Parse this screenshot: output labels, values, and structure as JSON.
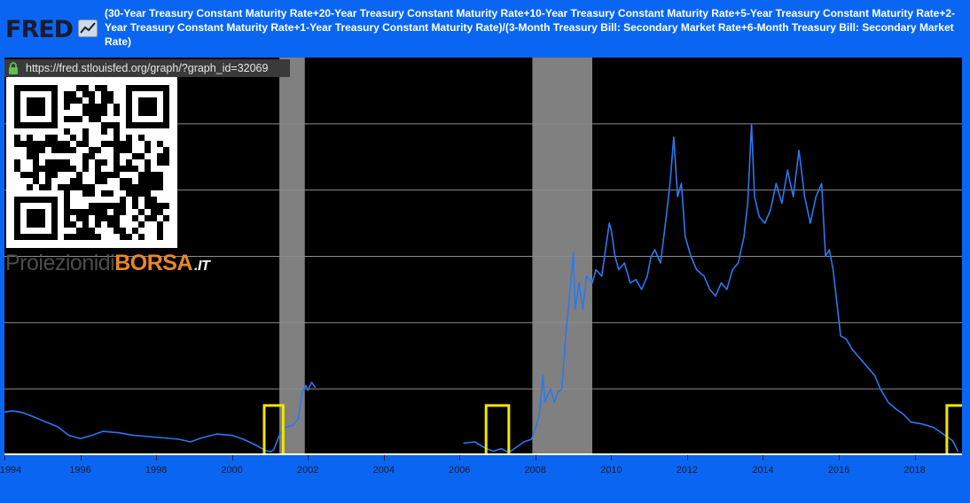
{
  "header": {
    "logo_text": "FRED",
    "logo_icon": "chart-line-icon",
    "title": "(30-Year Treasury Constant Maturity Rate+20-Year Treasury Constant Maturity Rate+10-Year Treasury Constant Maturity Rate+5-Year Treasury Constant Maturity Rate+2-Year Treasury Constant Maturity Rate+1-Year Treasury Constant Maturity Rate)/(3-Month Treasury Bill: Secondary Market Rate+6-Month Treasury Bill: Secondary Market Rate)"
  },
  "overlay": {
    "url": "https://fred.stlouisfed.org/graph/?graph_id=32069",
    "lock_icon": "lock-icon",
    "qr_icon": "qr-code-icon",
    "watermark_part1": "Proiezionidi",
    "watermark_part2": "BORSA",
    "watermark_part3": ".IT"
  },
  "colors": {
    "background": "#0a66f2",
    "plot_background": "#000000",
    "line": "#2a78f0",
    "recession": "#808080",
    "gridline": "#8c8c8c",
    "highlight_box": "#f2e600"
  },
  "chart_data": {
    "type": "line",
    "xlim": [
      1994.0,
      2019.25
    ],
    "ylim": [
      0,
      6
    ],
    "grid": true,
    "x_ticks": [
      "1994",
      "1996",
      "1998",
      "2000",
      "2002",
      "2004",
      "2006",
      "2008",
      "2010",
      "2012",
      "2014",
      "2016",
      "2018"
    ],
    "recessions": [
      [
        2001.25,
        2001.92
      ],
      [
        2007.92,
        2009.5
      ]
    ],
    "highlight_boxes": [
      [
        2000.85,
        2001.35
      ],
      [
        2006.7,
        2007.3
      ],
      [
        2018.85,
        2019.4
      ]
    ],
    "series": [
      {
        "segments": [
          [
            [
              1994.0,
              0.65
            ],
            [
              1994.2,
              0.67
            ],
            [
              1994.5,
              0.64
            ],
            [
              1994.8,
              0.57
            ],
            [
              1995.1,
              0.5
            ],
            [
              1995.4,
              0.43
            ],
            [
              1995.7,
              0.3
            ],
            [
              1996.0,
              0.25
            ],
            [
              1996.3,
              0.3
            ],
            [
              1996.6,
              0.36
            ],
            [
              1997.0,
              0.34
            ],
            [
              1997.4,
              0.3
            ],
            [
              1997.8,
              0.28
            ],
            [
              1998.2,
              0.26
            ],
            [
              1998.6,
              0.24
            ],
            [
              1998.9,
              0.2
            ],
            [
              1999.2,
              0.26
            ],
            [
              1999.6,
              0.32
            ],
            [
              2000.0,
              0.3
            ],
            [
              2000.3,
              0.24
            ],
            [
              2000.6,
              0.16
            ],
            [
              2000.85,
              0.08
            ],
            [
              2001.0,
              0.05
            ],
            [
              2001.1,
              0.08
            ],
            [
              2001.25,
              0.3
            ],
            [
              2001.4,
              0.42
            ],
            [
              2001.6,
              0.45
            ],
            [
              2001.75,
              0.55
            ],
            [
              2001.85,
              0.95
            ],
            [
              2001.95,
              1.05
            ],
            [
              2002.0,
              0.98
            ],
            [
              2002.1,
              1.1
            ],
            [
              2002.2,
              1.02
            ]
          ],
          [
            [
              2006.1,
              0.18
            ],
            [
              2006.4,
              0.2
            ],
            [
              2006.7,
              0.1
            ],
            [
              2006.9,
              0.06
            ],
            [
              2007.1,
              0.1
            ],
            [
              2007.3,
              0.04
            ],
            [
              2007.5,
              0.12
            ],
            [
              2007.7,
              0.2
            ],
            [
              2007.9,
              0.24
            ],
            [
              2008.0,
              0.4
            ],
            [
              2008.1,
              0.6
            ],
            [
              2008.2,
              1.2
            ],
            [
              2008.25,
              0.8
            ],
            [
              2008.4,
              1.0
            ],
            [
              2008.5,
              0.8
            ],
            [
              2008.6,
              0.95
            ],
            [
              2008.7,
              1.0
            ],
            [
              2008.8,
              1.8
            ],
            [
              2008.9,
              2.4
            ],
            [
              2009.0,
              3.05
            ],
            [
              2009.05,
              2.2
            ],
            [
              2009.15,
              2.6
            ],
            [
              2009.25,
              2.2
            ],
            [
              2009.35,
              2.7
            ],
            [
              2009.5,
              2.6
            ],
            [
              2009.6,
              2.8
            ],
            [
              2009.75,
              2.7
            ],
            [
              2009.85,
              3.1
            ],
            [
              2009.95,
              3.5
            ],
            [
              2010.0,
              3.4
            ],
            [
              2010.1,
              3.0
            ],
            [
              2010.2,
              2.8
            ],
            [
              2010.35,
              2.9
            ],
            [
              2010.5,
              2.6
            ],
            [
              2010.65,
              2.65
            ],
            [
              2010.8,
              2.5
            ],
            [
              2010.95,
              2.7
            ],
            [
              2011.05,
              3.0
            ],
            [
              2011.15,
              3.1
            ],
            [
              2011.3,
              2.9
            ],
            [
              2011.45,
              3.6
            ],
            [
              2011.55,
              4.1
            ],
            [
              2011.65,
              4.8
            ],
            [
              2011.75,
              3.9
            ],
            [
              2011.85,
              4.1
            ],
            [
              2011.95,
              3.3
            ],
            [
              2012.1,
              3.0
            ],
            [
              2012.25,
              2.8
            ],
            [
              2012.45,
              2.7
            ],
            [
              2012.6,
              2.5
            ],
            [
              2012.75,
              2.4
            ],
            [
              2012.9,
              2.6
            ],
            [
              2013.05,
              2.5
            ],
            [
              2013.2,
              2.8
            ],
            [
              2013.35,
              2.9
            ],
            [
              2013.5,
              3.3
            ],
            [
              2013.6,
              3.8
            ],
            [
              2013.7,
              5.0
            ],
            [
              2013.78,
              3.9
            ],
            [
              2013.9,
              3.6
            ],
            [
              2014.05,
              3.5
            ],
            [
              2014.2,
              3.7
            ],
            [
              2014.35,
              4.1
            ],
            [
              2014.5,
              3.8
            ],
            [
              2014.65,
              4.3
            ],
            [
              2014.8,
              3.9
            ],
            [
              2014.95,
              4.6
            ],
            [
              2015.1,
              3.9
            ],
            [
              2015.25,
              3.5
            ],
            [
              2015.4,
              3.9
            ],
            [
              2015.55,
              4.1
            ],
            [
              2015.65,
              3.0
            ],
            [
              2015.75,
              3.1
            ],
            [
              2015.85,
              2.8
            ],
            [
              2015.95,
              2.3
            ],
            [
              2016.05,
              1.8
            ],
            [
              2016.2,
              1.75
            ],
            [
              2016.35,
              1.6
            ],
            [
              2016.5,
              1.5
            ],
            [
              2016.65,
              1.4
            ],
            [
              2016.8,
              1.3
            ],
            [
              2016.95,
              1.2
            ],
            [
              2017.1,
              1.0
            ],
            [
              2017.3,
              0.8
            ],
            [
              2017.5,
              0.7
            ],
            [
              2017.7,
              0.62
            ],
            [
              2017.9,
              0.5
            ],
            [
              2018.2,
              0.47
            ],
            [
              2018.5,
              0.42
            ],
            [
              2018.8,
              0.3
            ],
            [
              2019.0,
              0.22
            ],
            [
              2019.15,
              0.05
            ]
          ]
        ]
      }
    ]
  }
}
